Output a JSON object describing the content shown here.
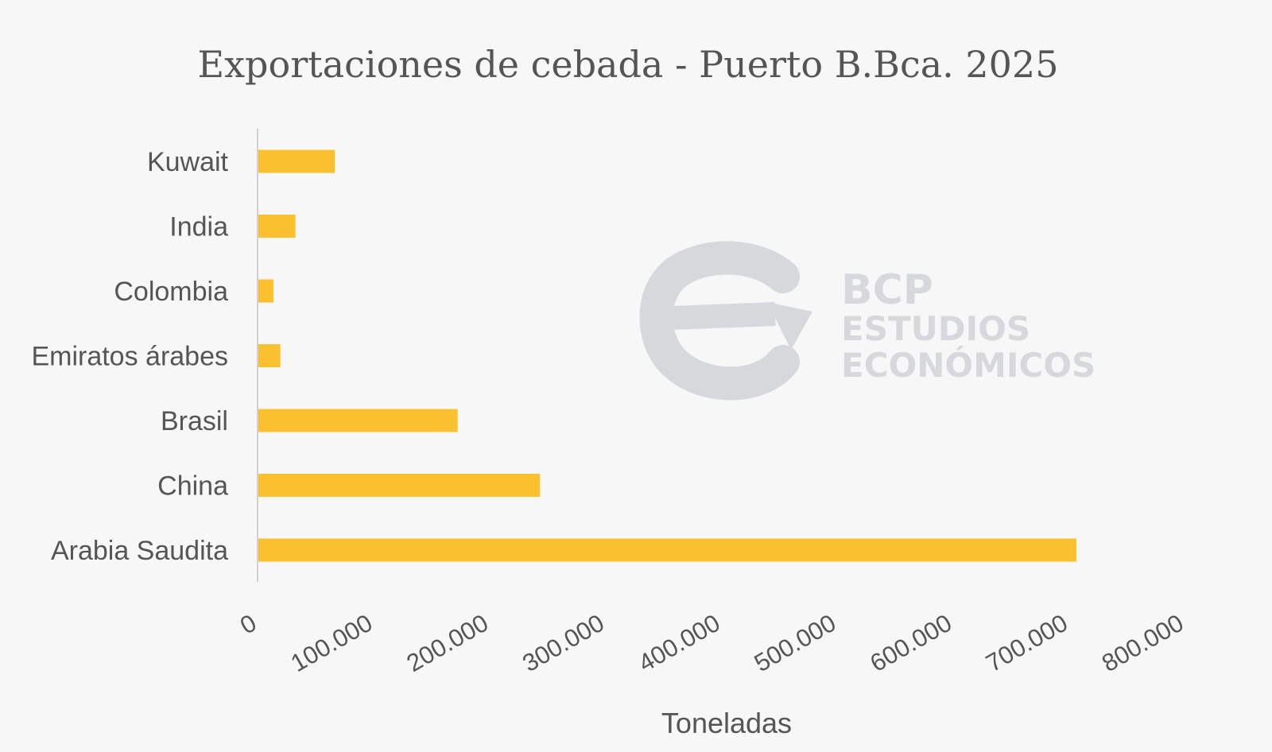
{
  "chart_data": {
    "type": "bar",
    "orientation": "horizontal",
    "title": "Exportaciones de cebada - Puerto B.Bca. 2025",
    "xlabel": "Toneladas",
    "ylabel": "",
    "categories": [
      "Kuwait",
      "India",
      "Colombia",
      "Emiratos árabes",
      "Brasil",
      "China",
      "Arabia Saudita"
    ],
    "values": [
      66000,
      32000,
      13000,
      19000,
      172000,
      243000,
      706000
    ],
    "xlim": [
      0,
      800000
    ],
    "ticks": [
      0,
      100000,
      200000,
      300000,
      400000,
      500000,
      600000,
      700000,
      800000
    ],
    "tick_labels": [
      "0",
      "100.000",
      "200.000",
      "300.000",
      "400.000",
      "500.000",
      "600.000",
      "700.000",
      "800.000"
    ],
    "grid": false,
    "legend": "none",
    "bar_color": "#fbc02d"
  },
  "watermark": {
    "line1": "BCP",
    "line2": "ESTUDIOS",
    "line3": "ECONÓMICOS",
    "icon": "bcp-e-arrow-logo"
  }
}
